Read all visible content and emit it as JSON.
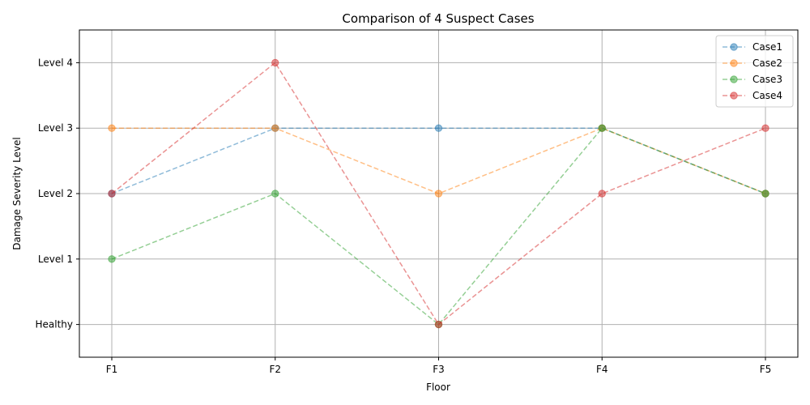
{
  "chart_data": {
    "type": "line",
    "title": "Comparison of 4 Suspect Cases",
    "xlabel": "Floor",
    "ylabel": "Damage Severity Level",
    "categories": [
      "F1",
      "F2",
      "F3",
      "F4",
      "F5"
    ],
    "ytick_values": [
      0,
      1,
      2,
      3,
      4
    ],
    "ytick_labels": [
      "Healthy",
      "Level 1",
      "Level 2",
      "Level 3",
      "Level 4"
    ],
    "ylim": [
      -0.5,
      4.5
    ],
    "grid": true,
    "legend_position": "top-right",
    "series": [
      {
        "name": "Case1",
        "color": "#1f77b4",
        "values": [
          2,
          3,
          3,
          3,
          2
        ]
      },
      {
        "name": "Case2",
        "color": "#ff7f0e",
        "values": [
          3,
          3,
          2,
          3,
          2
        ]
      },
      {
        "name": "Case3",
        "color": "#2ca02c",
        "values": [
          1,
          2,
          0,
          3,
          2
        ]
      },
      {
        "name": "Case4",
        "color": "#d62728",
        "values": [
          2,
          4,
          0,
          2,
          3
        ]
      }
    ]
  }
}
